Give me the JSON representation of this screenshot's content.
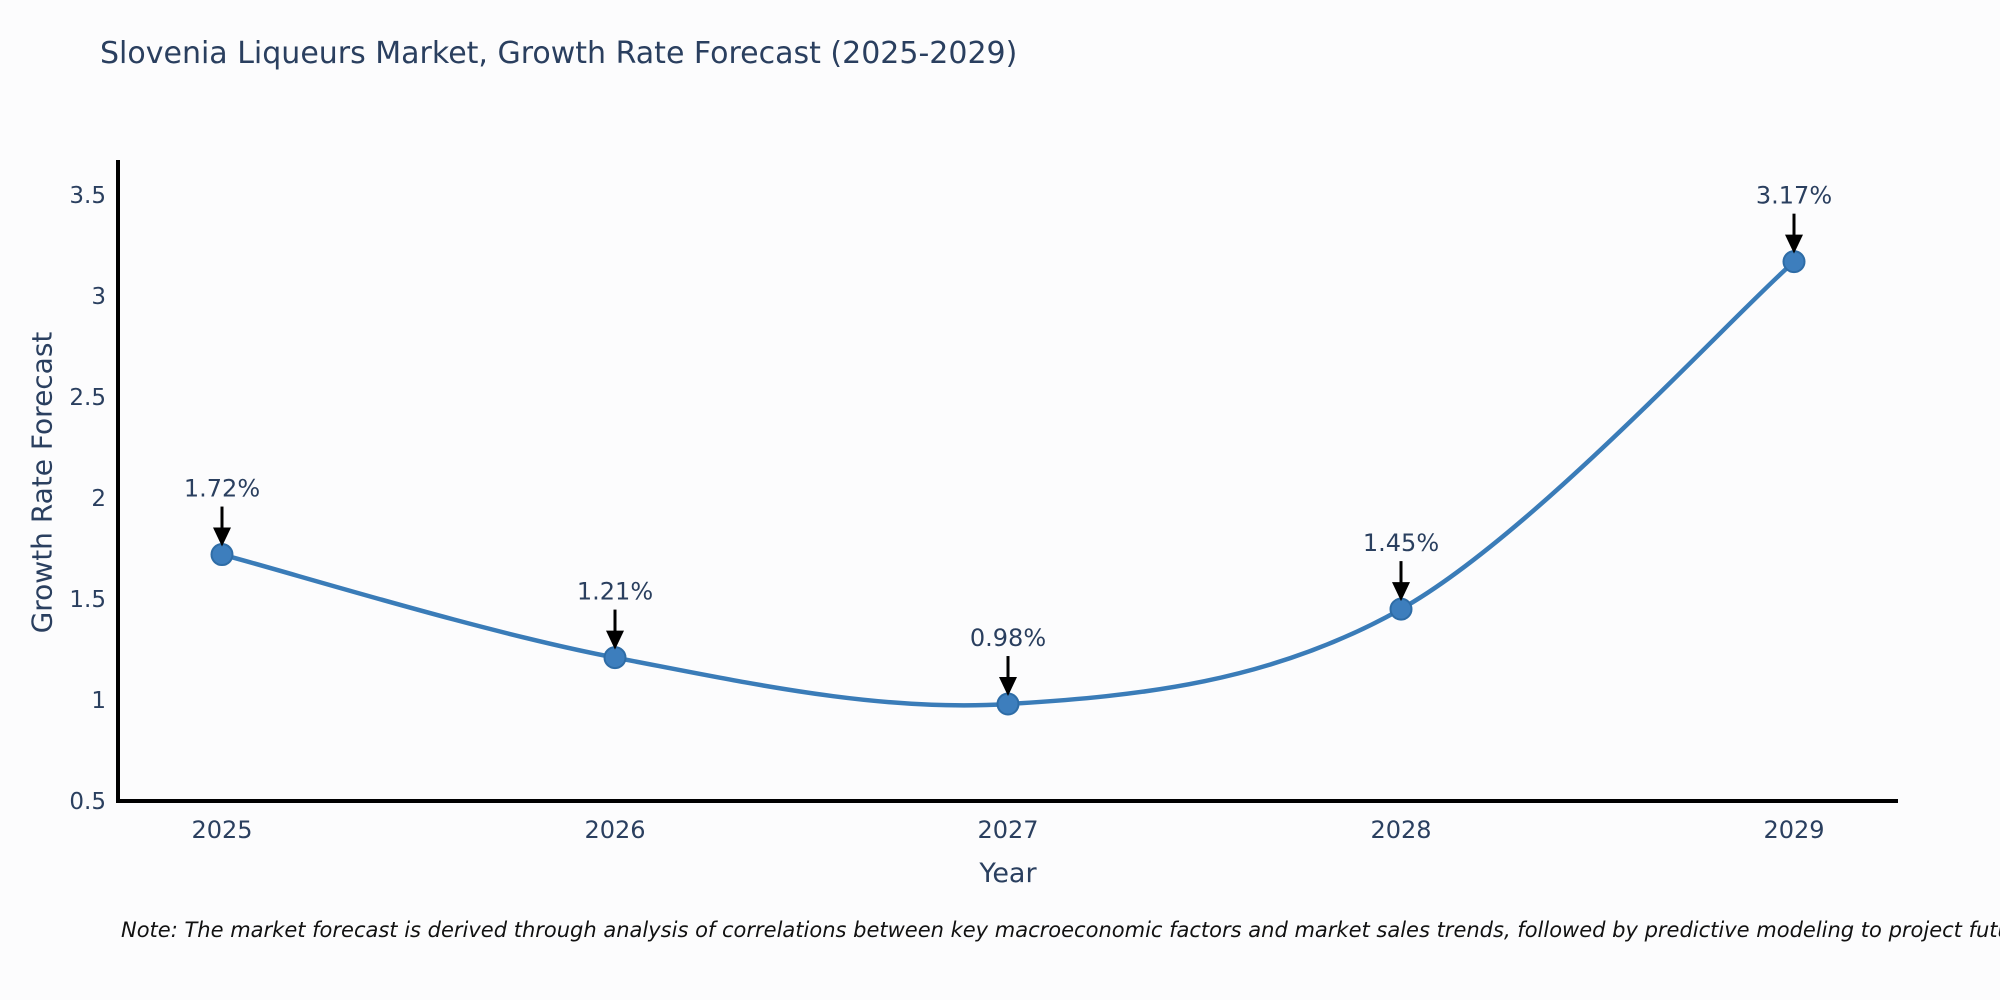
{
  "note": "Note: The market forecast is derived through analysis of correlations between key macroeconomic factors and market sales trends, followed by predictive modeling to project future sales",
  "chart_data": {
    "type": "line",
    "title": "Slovenia Liqueurs Market, Growth Rate Forecast (2025-2029)",
    "xlabel": "Year",
    "ylabel": "Growth Rate Forecast",
    "categories": [
      "2025",
      "2026",
      "2027",
      "2028",
      "2029"
    ],
    "series": [
      {
        "name": "Growth Rate Forecast",
        "values": [
          1.72,
          1.21,
          0.98,
          1.45,
          3.17
        ],
        "point_labels": [
          "1.72%",
          "1.21%",
          "0.98%",
          "1.45%",
          "3.17%"
        ]
      }
    ],
    "ylim": [
      0.5,
      3.5
    ],
    "y_ticks": [
      "0.5",
      "1",
      "1.5",
      "2",
      "2.5",
      "3",
      "3.5"
    ],
    "y_tick_values": [
      0.5,
      1,
      1.5,
      2,
      2.5,
      3,
      3.5
    ],
    "grid": "off",
    "legend": "none",
    "line_shape": "spline",
    "annotation_style": "label-with-down-arrow",
    "colors": {
      "line": "#3a7cb8",
      "marker_fill": "#3d7ebd",
      "marker_edge": "#2e6ca6",
      "axis_line": "#000000",
      "tick_text": "#2a3f5f",
      "annotation_text": "#2a3f5f",
      "annotation_arrow": "#000000",
      "title_text": "#2a3f5f",
      "background": "#fcfcfd"
    }
  }
}
